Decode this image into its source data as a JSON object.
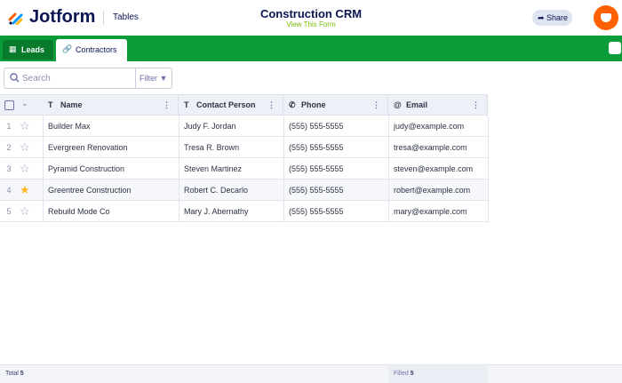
{
  "header": {
    "brand": "Jotform",
    "section": "Tables",
    "title": "Construction CRM",
    "subtitle": "View This Form",
    "share": "Share"
  },
  "tabs": [
    {
      "label": "Leads",
      "active": false
    },
    {
      "label": "Contractors",
      "active": true
    }
  ],
  "toolbar": {
    "search_placeholder": "Search",
    "filter": "Filter"
  },
  "table": {
    "columns": [
      "Name",
      "Contact Person",
      "Phone",
      "Email"
    ],
    "rows": [
      {
        "index": 1,
        "starred": false,
        "cells": [
          "Builder Max",
          "Judy F. Jordan",
          "(555) 555-5555",
          "judy@example.com"
        ]
      },
      {
        "index": 2,
        "starred": false,
        "cells": [
          "Evergreen Renovation",
          "Tresa R. Brown",
          "(555) 555-5555",
          "tresa@example.com"
        ]
      },
      {
        "index": 3,
        "starred": false,
        "cells": [
          "Pyramid Construction",
          "Steven Martinez",
          "(555) 555-5555",
          "steven@example.com"
        ]
      },
      {
        "index": 4,
        "starred": true,
        "cells": [
          "Greentree Construction",
          "Robert C. Decarlo",
          "(555) 555-5555",
          "robert@example.com"
        ]
      },
      {
        "index": 5,
        "starred": false,
        "cells": [
          "Rebuild Mode Co",
          "Mary J. Abernathy",
          "(555) 555-5555",
          "mary@example.com"
        ]
      }
    ]
  },
  "footer": {
    "total_label": "Total",
    "total": 5,
    "filled_label": "Filled",
    "filled": 5
  }
}
